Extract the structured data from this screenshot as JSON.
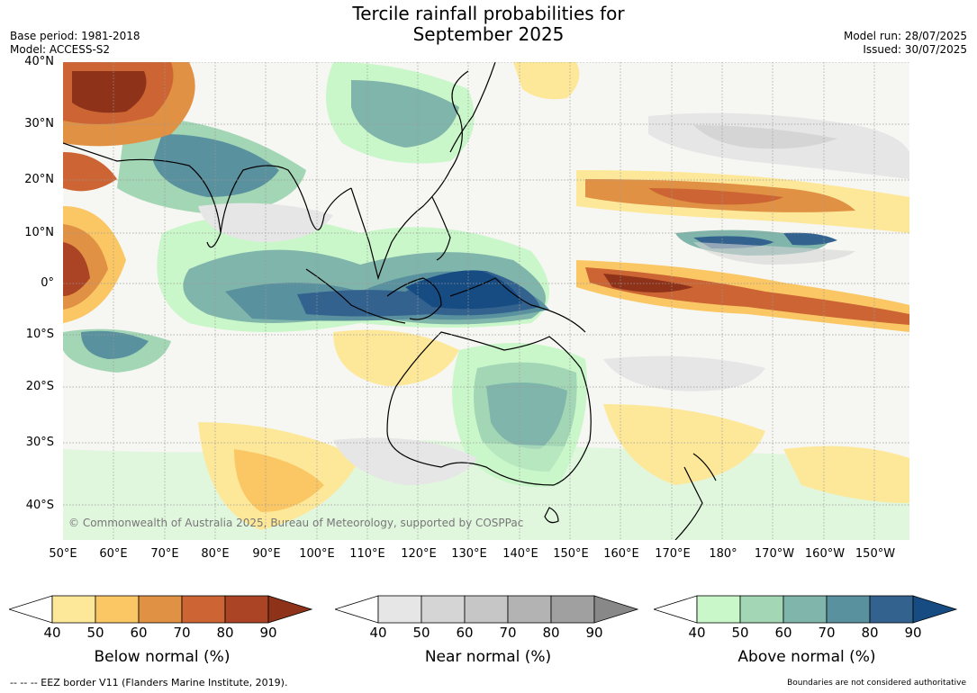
{
  "header": {
    "title_line1": "Tercile rainfall probabilities for",
    "title_line2": "September 2025",
    "base_period": "Base period: 1981-2018",
    "model": "Model: ACCESS-S2",
    "model_run": "Model run: 28/07/2025",
    "issued": "Issued: 30/07/2025"
  },
  "map": {
    "lat_labels": [
      "40°N",
      "30°N",
      "20°N",
      "10°N",
      "0°",
      "10°S",
      "20°S",
      "30°S",
      "40°S"
    ],
    "lon_labels": [
      "50°E",
      "60°E",
      "70°E",
      "80°E",
      "90°E",
      "100°E",
      "110°E",
      "120°E",
      "130°E",
      "140°E",
      "150°E",
      "160°E",
      "170°E",
      "180°",
      "170°W",
      "160°W",
      "150°W"
    ],
    "copyright": "© Commonwealth of Australia 2025, Bureau of Meteorology, supported by COSPPac",
    "projection_extent": {
      "lon_min": 50,
      "lon_max": 217,
      "lat_min": -46,
      "lat_max": 40
    }
  },
  "legend": {
    "below": {
      "label": "Below normal (%)",
      "ticks": [
        "40",
        "50",
        "60",
        "70",
        "80",
        "90"
      ],
      "colors": [
        "#ffffff",
        "#fde89a",
        "#fac764",
        "#e19144",
        "#cc6533",
        "#aa4424",
        "#8e3219"
      ]
    },
    "near": {
      "label": "Near normal (%)",
      "ticks": [
        "40",
        "50",
        "60",
        "70",
        "80",
        "90"
      ],
      "colors": [
        "#ffffff",
        "#e6e6e6",
        "#d5d5d5",
        "#c6c6c6",
        "#b3b3b3",
        "#a0a0a0",
        "#888888"
      ]
    },
    "above": {
      "label": "Above normal (%)",
      "ticks": [
        "40",
        "50",
        "60",
        "70",
        "80",
        "90"
      ],
      "colors": [
        "#ffffff",
        "#c9f7c9",
        "#a2d6b5",
        "#80b5ab",
        "#5a919e",
        "#34628f",
        "#174c83"
      ]
    }
  },
  "footer": {
    "eez_note": "--  --  -- EEZ border V11 (Flanders Marine Institute, 2019).",
    "disclaimer": "Boundaries are not considered authoritative"
  }
}
